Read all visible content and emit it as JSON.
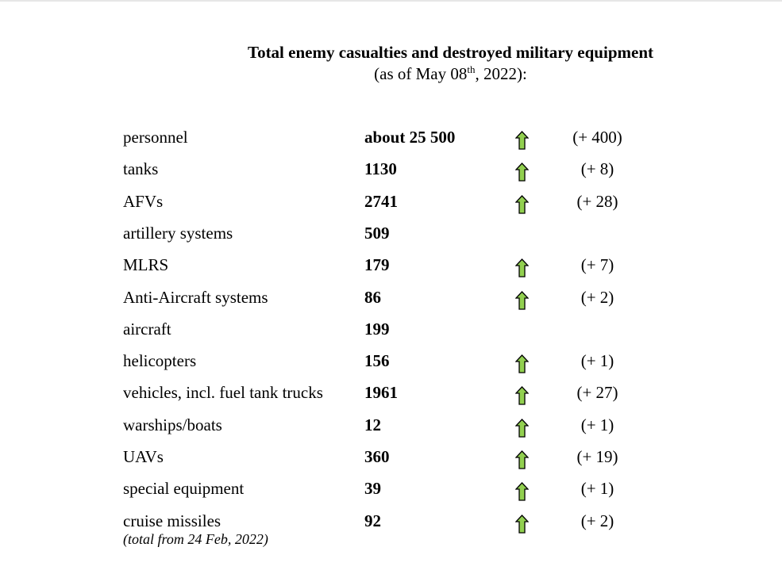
{
  "title": "Total enemy casualties and destroyed military equipment",
  "subtitle": {
    "prefix": "(as of May 08",
    "sup": "th",
    "suffix": ", 2022):"
  },
  "arrow_color": "#92d050",
  "rows": [
    {
      "label": "personnel",
      "value": "about 25 500",
      "arrow": "up-arrow",
      "change": "(+ 400)"
    },
    {
      "label": "tanks",
      "value": "1130",
      "arrow": "up-arrow",
      "change": "(+ 8)"
    },
    {
      "label": "AFVs",
      "value": "2741",
      "arrow": "up-arrow",
      "change": "(+ 28)"
    },
    {
      "label": "artillery systems",
      "value": "509",
      "arrow": null,
      "change": ""
    },
    {
      "label": "MLRS",
      "value": "179",
      "arrow": "up-arrow",
      "change": "(+ 7)"
    },
    {
      "label": "Anti-Aircraft systems",
      "value": "86",
      "arrow": "up-arrow",
      "change": "(+ 2)"
    },
    {
      "label": "aircraft",
      "value": "199",
      "arrow": null,
      "change": ""
    },
    {
      "label": "helicopters",
      "value": "156",
      "arrow": "up-arrow",
      "change": "(+ 1)"
    },
    {
      "label": "vehicles, incl. fuel tank trucks",
      "value": "1961",
      "arrow": "up-arrow",
      "change": "(+ 27)"
    },
    {
      "label": "warships/boats",
      "value": "12",
      "arrow": "up-arrow",
      "change": "(+ 1)"
    },
    {
      "label": "UAVs",
      "value": "360",
      "arrow": "up-arrow",
      "change": "(+ 19)"
    },
    {
      "label": "special equipment",
      "value": "39",
      "arrow": "up-arrow",
      "change": "(+ 1)"
    },
    {
      "label": "cruise missiles",
      "value": "92",
      "arrow": "up-arrow",
      "change": "(+ 2)"
    }
  ],
  "note": "(total from 24 Feb, 2022)"
}
